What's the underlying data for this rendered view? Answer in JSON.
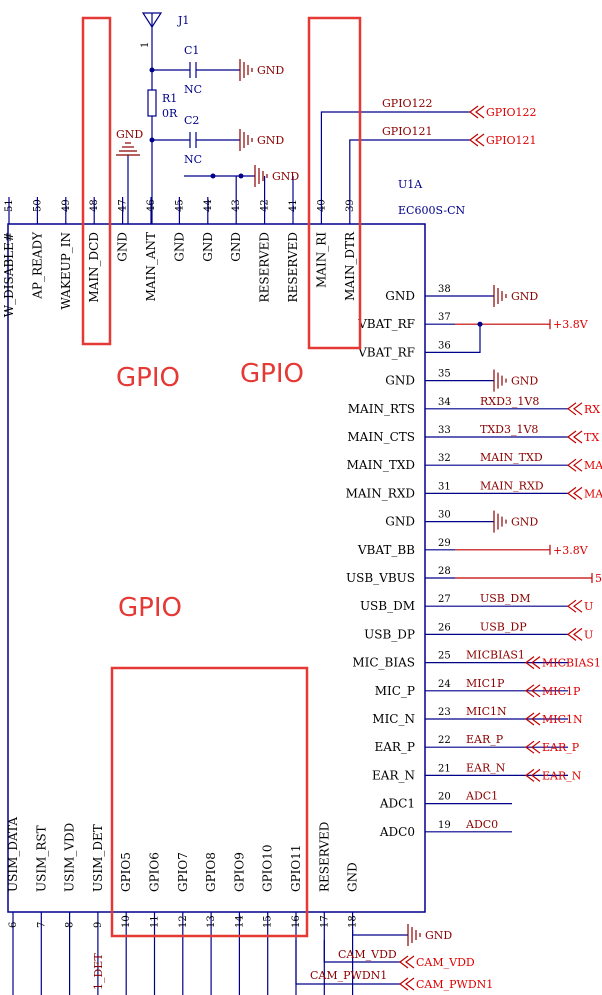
{
  "component": {
    "ref": "U1A",
    "part": "EC600S-CN"
  },
  "antenna": {
    "ref": "J1",
    "pin": "1"
  },
  "passives": {
    "c1": {
      "ref": "C1",
      "val": "NC"
    },
    "r1": {
      "ref": "R1",
      "val": "0R"
    },
    "c2": {
      "ref": "C2",
      "val": "NC"
    }
  },
  "gnd_label": "GND",
  "top_pins": [
    {
      "num": "51",
      "name": "W_DISABLE#"
    },
    {
      "num": "50",
      "name": "AP_READY"
    },
    {
      "num": "49",
      "name": "WAKEUP_IN"
    },
    {
      "num": "48",
      "name": "MAIN_DCD"
    },
    {
      "num": "47",
      "name": "GND"
    },
    {
      "num": "46",
      "name": "MAIN_ANT"
    },
    {
      "num": "45",
      "name": "GND"
    },
    {
      "num": "44",
      "name": "GND"
    },
    {
      "num": "43",
      "name": "GND"
    },
    {
      "num": "42",
      "name": "RESERVED"
    },
    {
      "num": "41",
      "name": "RESERVED"
    },
    {
      "num": "40",
      "name": "MAIN_RI"
    },
    {
      "num": "39",
      "name": "MAIN_DTR"
    }
  ],
  "top_nets": [
    {
      "wire": "GPIO122",
      "port": "GPIO122"
    },
    {
      "wire": "GPIO121",
      "port": "GPIO121"
    }
  ],
  "right_pins": [
    {
      "num": "38",
      "name": "GND",
      "net": "",
      "port": "",
      "end": "gnd"
    },
    {
      "num": "37",
      "name": "VBAT_RF",
      "net": "",
      "port": "+3.8V",
      "end": "pwr"
    },
    {
      "num": "36",
      "name": "VBAT_RF",
      "net": "",
      "port": "",
      "end": "none"
    },
    {
      "num": "35",
      "name": "GND",
      "net": "",
      "port": "",
      "end": "gnd"
    },
    {
      "num": "34",
      "name": "MAIN_RTS",
      "net": "RXD3_1V8",
      "port": "RX",
      "end": "port"
    },
    {
      "num": "33",
      "name": "MAIN_CTS",
      "net": "TXD3_1V8",
      "port": "TX",
      "end": "port"
    },
    {
      "num": "32",
      "name": "MAIN_TXD",
      "net": "MAIN_TXD",
      "port": "MA",
      "end": "port"
    },
    {
      "num": "31",
      "name": "MAIN_RXD",
      "net": "MAIN_RXD",
      "port": "MA",
      "end": "port"
    },
    {
      "num": "30",
      "name": "GND",
      "net": "",
      "port": "",
      "end": "gnd"
    },
    {
      "num": "29",
      "name": "VBAT_BB",
      "net": "",
      "port": "+3.8V",
      "end": "pwr"
    },
    {
      "num": "28",
      "name": "USB_VBUS",
      "net": "",
      "port": "5",
      "end": "pwr"
    },
    {
      "num": "27",
      "name": "USB_DM",
      "net": "USB_DM",
      "port": "U",
      "end": "port"
    },
    {
      "num": "26",
      "name": "USB_DP",
      "net": "USB_DP",
      "port": "U",
      "end": "port"
    },
    {
      "num": "25",
      "name": "MIC_BIAS",
      "net": "MICBIAS1",
      "port": "MICBIAS1",
      "end": "port"
    },
    {
      "num": "24",
      "name": "MIC_P",
      "net": "MIC1P",
      "port": "MIC1P",
      "end": "port"
    },
    {
      "num": "23",
      "name": "MIC_N",
      "net": "MIC1N",
      "port": "MIC1N",
      "end": "port"
    },
    {
      "num": "22",
      "name": "EAR_P",
      "net": "EAR_P",
      "port": "EAR_P",
      "end": "port"
    },
    {
      "num": "21",
      "name": "EAR_N",
      "net": "EAR_N",
      "port": "EAR_N",
      "end": "port"
    },
    {
      "num": "20",
      "name": "ADC1",
      "net": "ADC1",
      "port": "",
      "end": "none"
    },
    {
      "num": "19",
      "name": "ADC0",
      "net": "ADC0",
      "port": "",
      "end": "none"
    }
  ],
  "bottom_pins": [
    {
      "num": "6",
      "name": "USIM_DATA"
    },
    {
      "num": "7",
      "name": "USIM_RST"
    },
    {
      "num": "8",
      "name": "USIM_VDD"
    },
    {
      "num": "9",
      "name": "USIM_DET"
    },
    {
      "num": "10",
      "name": "GPIO5"
    },
    {
      "num": "11",
      "name": "GPIO6"
    },
    {
      "num": "12",
      "name": "GPIO7"
    },
    {
      "num": "13",
      "name": "GPIO8"
    },
    {
      "num": "14",
      "name": "GPIO9"
    },
    {
      "num": "15",
      "name": "GPIO10"
    },
    {
      "num": "16",
      "name": "GPIO11"
    },
    {
      "num": "17",
      "name": "RESERVED"
    },
    {
      "num": "18",
      "name": "GND"
    }
  ],
  "bottom_nets": {
    "det": "1_DET",
    "cam_vdd_wire": "CAM_VDD",
    "cam_vdd_port": "CAM_VDD",
    "cam_pwdn_wire": "CAM_PWDN1",
    "cam_pwdn_port": "CAM_PWDN1"
  },
  "highlights": [
    "GPIO",
    "GPIO",
    "GPIO"
  ]
}
